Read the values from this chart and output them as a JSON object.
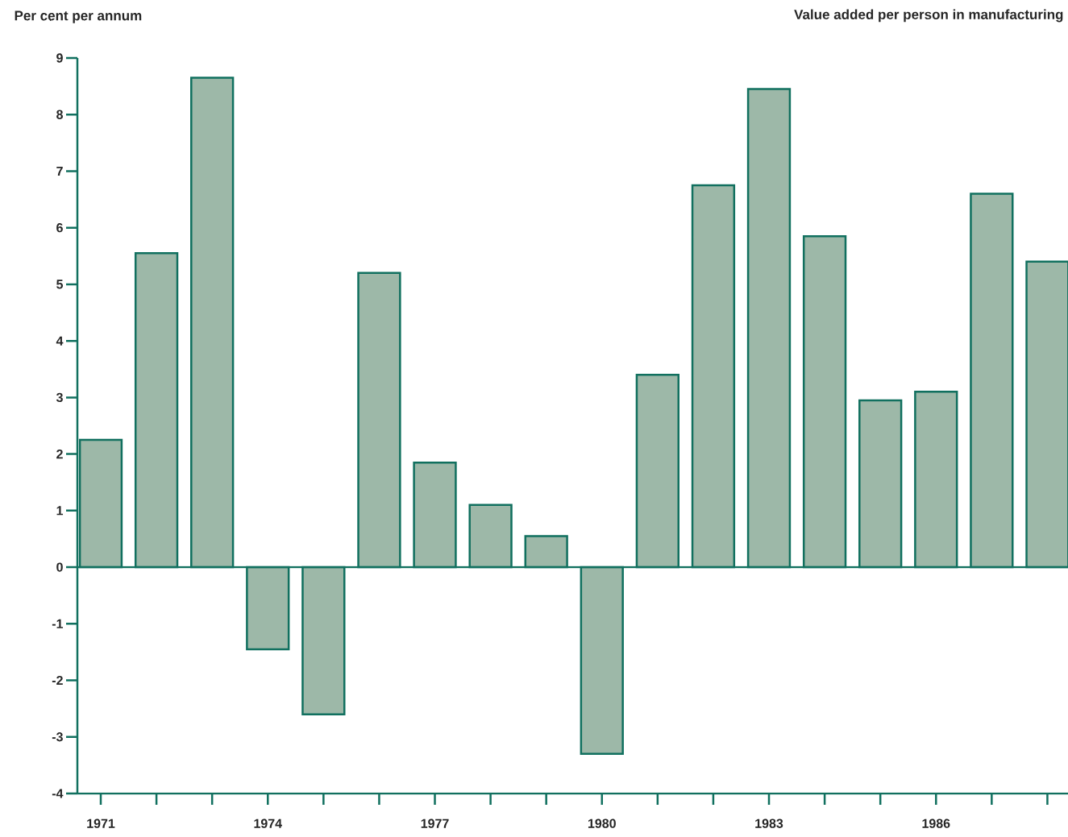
{
  "chart_data": {
    "type": "bar",
    "title": "Value added per person in manufacturing",
    "ylabel": "Per cent per annum",
    "categories": [
      "1971",
      null,
      null,
      "1974",
      null,
      null,
      "1977",
      null,
      null,
      "1980",
      null,
      null,
      "1983",
      null,
      null,
      "1986",
      null,
      null
    ],
    "values": [
      2.25,
      5.55,
      8.65,
      -1.45,
      -2.6,
      5.2,
      1.85,
      1.1,
      0.55,
      -3.3,
      3.4,
      6.75,
      8.45,
      5.85,
      2.95,
      3.1,
      6.6,
      5.4
    ],
    "color": "#9db8a8",
    "ylim": [
      -4,
      9
    ],
    "yticks": [
      -4,
      -3,
      -2,
      -1,
      0,
      1,
      2,
      3,
      4,
      5,
      6,
      7,
      8,
      9
    ],
    "ref_lines": [
      {
        "axis": "y",
        "value": 0,
        "color": "#11705f"
      }
    ]
  }
}
